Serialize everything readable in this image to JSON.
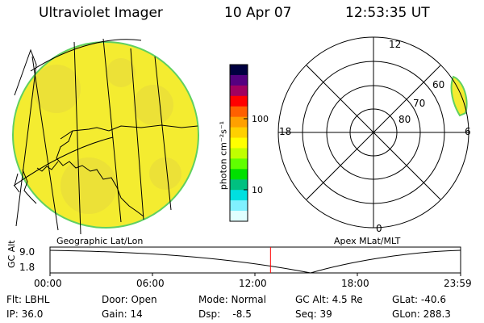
{
  "header": {
    "instrument": "Ultraviolet Imager",
    "date": "10 Apr 07",
    "time": "12:53:35 UT"
  },
  "colorbar": {
    "label": "photon cm⁻²s⁻¹",
    "ticks": [
      "100",
      "10"
    ],
    "colors": [
      "#000040",
      "#550080",
      "#a00060",
      "#ff0000",
      "#ff6000",
      "#ffa000",
      "#ffd000",
      "#ffff00",
      "#c0ff00",
      "#60ff00",
      "#00e000",
      "#00c080",
      "#00e0e0",
      "#80f0ff",
      "#e0ffff"
    ]
  },
  "left_panel": {
    "caption": "Geographic Lat/Lon",
    "disk_fill": "#f4ec30"
  },
  "polar_plot": {
    "caption": "Apex MLat/MLT",
    "mlt_labels": [
      "12",
      "18",
      "6",
      "0"
    ],
    "lat_labels": [
      "60",
      "70",
      "80"
    ]
  },
  "altitude_track": {
    "ylabel": "GC Alt",
    "ymax_label": "9.0",
    "ymin_label": "1.8",
    "time_labels": [
      "00:00",
      "06:00",
      "12:00",
      "18:00",
      "23:59"
    ],
    "current_time_fraction": 0.537,
    "marker_color": "#ff0000"
  },
  "footer": {
    "filter": "Flt: LBHL",
    "ip": "IP: 36.0",
    "door": "Door: Open",
    "gain": "Gain: 14",
    "mode": "Mode: Normal",
    "dsp": "Dsp:    -8.5",
    "gc_alt": "GC Alt: 4.5 Re",
    "seq": "Seq: 39",
    "glat": "GLat: -40.6",
    "glon": "GLon: 288.3"
  }
}
